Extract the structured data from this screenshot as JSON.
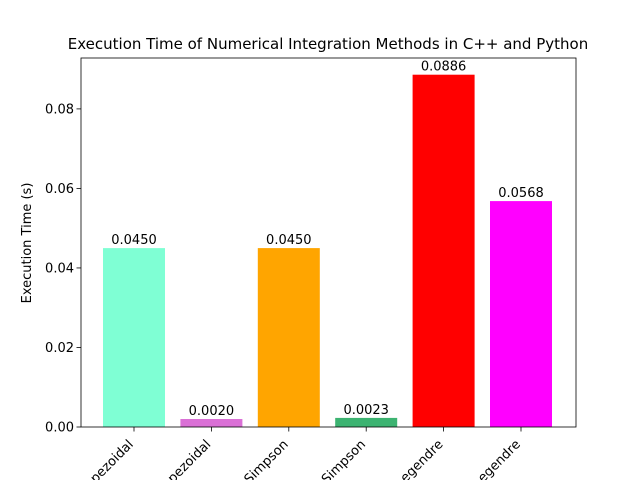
{
  "chart_data": {
    "type": "bar",
    "title": "Execution Time of Numerical Integration Methods in C++ and Python",
    "xlabel": "",
    "ylabel": "Execution Time (s)",
    "ylim": [
      0,
      0.0928
    ],
    "yticks": [
      0.0,
      0.02,
      0.04,
      0.06,
      0.08
    ],
    "ytick_labels": [
      "0.00",
      "0.02",
      "0.04",
      "0.06",
      "0.08"
    ],
    "grid": false,
    "legend": "none",
    "categories": [
      "C++ Trapezoidal",
      "Python Trapezoidal",
      "C++ Simpson",
      "Python Simpson",
      "C++ Gauss-Legendre",
      "Python Gauss-Legendre"
    ],
    "category_labels_visible": [
      "pezoidal",
      "pezoidal",
      "Simpson",
      "Simpson",
      "egendre",
      "egendre"
    ],
    "values": [
      0.045,
      0.002,
      0.045,
      0.0023,
      0.0886,
      0.0568
    ],
    "value_labels": [
      "0.0450",
      "0.0020",
      "0.0450",
      "0.0023",
      "0.0886",
      "0.0568"
    ],
    "colors": [
      "#7fffd4",
      "#da70d6",
      "#ffa500",
      "#3cb371",
      "#ff0000",
      "#ff00ff"
    ]
  }
}
